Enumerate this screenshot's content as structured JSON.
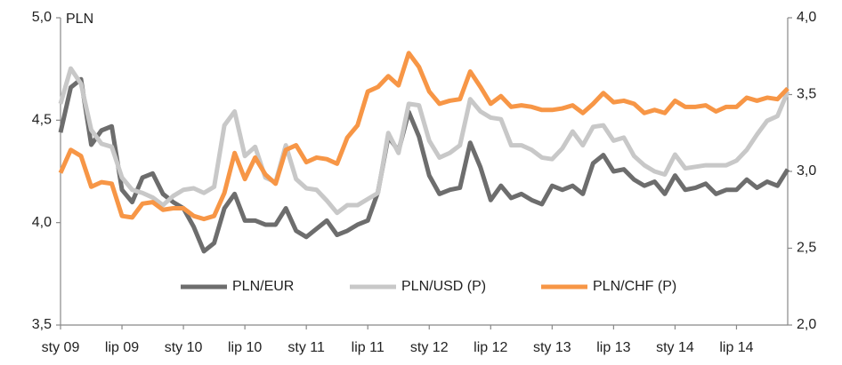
{
  "chart_data": {
    "type": "line",
    "ylabel": "PLN",
    "categories": [
      "sty 09",
      null,
      null,
      null,
      null,
      null,
      "lip 09",
      null,
      null,
      null,
      null,
      null,
      "sty 10",
      null,
      null,
      null,
      null,
      null,
      "lip 10",
      null,
      null,
      null,
      null,
      null,
      "sty 11",
      null,
      null,
      null,
      null,
      null,
      "lip 11",
      null,
      null,
      null,
      null,
      null,
      "sty 12",
      null,
      null,
      null,
      null,
      null,
      "lip 12",
      null,
      null,
      null,
      null,
      null,
      "sty 13",
      null,
      null,
      null,
      null,
      null,
      "lip 13",
      null,
      null,
      null,
      null,
      null,
      "sty 14",
      null,
      null,
      null,
      null,
      null,
      "lip 14",
      null,
      null,
      null,
      null,
      null
    ],
    "ylim": [
      3.5,
      5.0
    ],
    "yticks": [
      {
        "value": 3.5,
        "label": "3,5"
      },
      {
        "value": 4.0,
        "label": "4,0"
      },
      {
        "value": 4.5,
        "label": "4,5"
      },
      {
        "value": 5.0,
        "label": "5,0"
      }
    ],
    "y2lim": [
      2.0,
      4.0
    ],
    "y2ticks": [
      {
        "value": 2.0,
        "label": "2,0"
      },
      {
        "value": 2.5,
        "label": "2,5"
      },
      {
        "value": 3.0,
        "label": "3,0"
      },
      {
        "value": 3.5,
        "label": "3,5"
      },
      {
        "value": 4.0,
        "label": "4,0"
      }
    ],
    "grid": false,
    "legend": "lower center",
    "series": [
      {
        "name": "PLN/EUR",
        "color": "#6d6d6d",
        "axis": "y",
        "values": [
          4.44,
          4.66,
          4.7,
          4.38,
          4.45,
          4.47,
          4.16,
          4.1,
          4.22,
          4.24,
          4.14,
          4.1,
          4.07,
          3.98,
          3.86,
          3.9,
          4.07,
          4.14,
          4.01,
          4.01,
          3.99,
          3.99,
          4.07,
          3.96,
          3.93,
          3.97,
          4.01,
          3.94,
          3.96,
          3.99,
          4.01,
          4.15,
          4.42,
          4.35,
          4.54,
          4.42,
          4.23,
          4.14,
          4.16,
          4.17,
          4.39,
          4.27,
          4.11,
          4.18,
          4.12,
          4.14,
          4.11,
          4.09,
          4.18,
          4.16,
          4.18,
          4.14,
          4.29,
          4.33,
          4.25,
          4.26,
          4.21,
          4.18,
          4.2,
          4.14,
          4.23,
          4.16,
          4.17,
          4.19,
          4.14,
          4.16,
          4.16,
          4.21,
          4.17,
          4.2,
          4.18,
          4.26
        ]
      },
      {
        "name": "PLN/USD (P)",
        "color": "#c8c8c8",
        "axis": "y2",
        "values": [
          3.44,
          3.67,
          3.57,
          3.27,
          3.18,
          3.16,
          2.96,
          2.88,
          2.86,
          2.83,
          2.78,
          2.84,
          2.88,
          2.89,
          2.86,
          2.9,
          3.3,
          3.39,
          3.1,
          3.16,
          2.96,
          2.93,
          3.17,
          2.95,
          2.89,
          2.88,
          2.81,
          2.73,
          2.78,
          2.78,
          2.82,
          2.86,
          3.25,
          3.12,
          3.44,
          3.43,
          3.2,
          3.09,
          3.12,
          3.17,
          3.47,
          3.39,
          3.35,
          3.34,
          3.17,
          3.17,
          3.14,
          3.09,
          3.08,
          3.15,
          3.26,
          3.17,
          3.29,
          3.3,
          3.2,
          3.22,
          3.1,
          3.04,
          3.0,
          2.98,
          3.11,
          3.02,
          3.03,
          3.04,
          3.04,
          3.04,
          3.07,
          3.14,
          3.24,
          3.33,
          3.36,
          3.52
        ]
      },
      {
        "name": "PLN/CHF (P)",
        "color": "#f79646",
        "axis": "y2",
        "values": [
          2.99,
          3.14,
          3.1,
          2.9,
          2.93,
          2.92,
          2.71,
          2.7,
          2.79,
          2.8,
          2.75,
          2.76,
          2.76,
          2.71,
          2.69,
          2.71,
          2.86,
          3.12,
          2.95,
          3.09,
          2.98,
          2.92,
          3.14,
          3.17,
          3.06,
          3.09,
          3.08,
          3.05,
          3.22,
          3.3,
          3.52,
          3.55,
          3.62,
          3.56,
          3.77,
          3.68,
          3.52,
          3.44,
          3.46,
          3.47,
          3.65,
          3.55,
          3.44,
          3.49,
          3.42,
          3.43,
          3.42,
          3.4,
          3.4,
          3.41,
          3.43,
          3.38,
          3.44,
          3.51,
          3.45,
          3.46,
          3.44,
          3.38,
          3.4,
          3.38,
          3.46,
          3.42,
          3.42,
          3.43,
          3.39,
          3.42,
          3.42,
          3.48,
          3.46,
          3.48,
          3.47,
          3.54
        ]
      }
    ]
  }
}
